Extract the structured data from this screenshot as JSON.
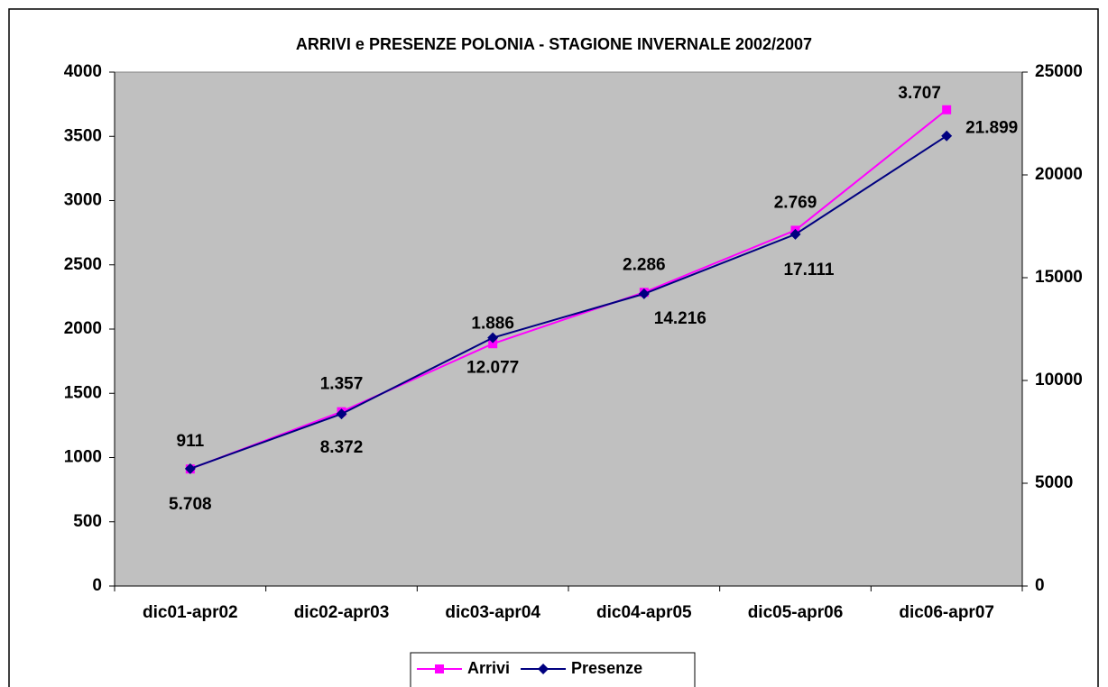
{
  "chart_data": {
    "type": "line",
    "title": "ARRIVI e PRESENZE POLONIA - STAGIONE INVERNALE 2002/2007",
    "categories": [
      "dic01-apr02",
      "dic02-apr03",
      "dic03-apr04",
      "dic04-apr05",
      "dic05-apr06",
      "dic06-apr07"
    ],
    "series": [
      {
        "name": "Arrivi",
        "color": "#ff00ff",
        "marker": "square",
        "values": [
          911,
          1357,
          1886,
          2286,
          2769,
          3707
        ],
        "value_labels": [
          "911",
          "1.357",
          "1.886",
          "2.286",
          "2.769",
          "3.707"
        ]
      },
      {
        "name": "Presenze",
        "color": "#000080",
        "marker": "diamond",
        "axis": "y2",
        "values": [
          5708,
          8372,
          12077,
          14216,
          17111,
          21899
        ],
        "value_labels": [
          "5.708",
          "8.372",
          "12.077",
          "14.216",
          "17.111",
          "21.899"
        ]
      }
    ],
    "ylim": [
      0,
      4000
    ],
    "yticks": [
      0,
      500,
      1000,
      1500,
      2000,
      2500,
      3000,
      3500,
      4000
    ],
    "y2lim": [
      0,
      25000
    ],
    "y2ticks": [
      0,
      5000,
      10000,
      15000,
      20000,
      25000
    ],
    "plot_background": "#c0c0c0",
    "legend": "bottom"
  }
}
